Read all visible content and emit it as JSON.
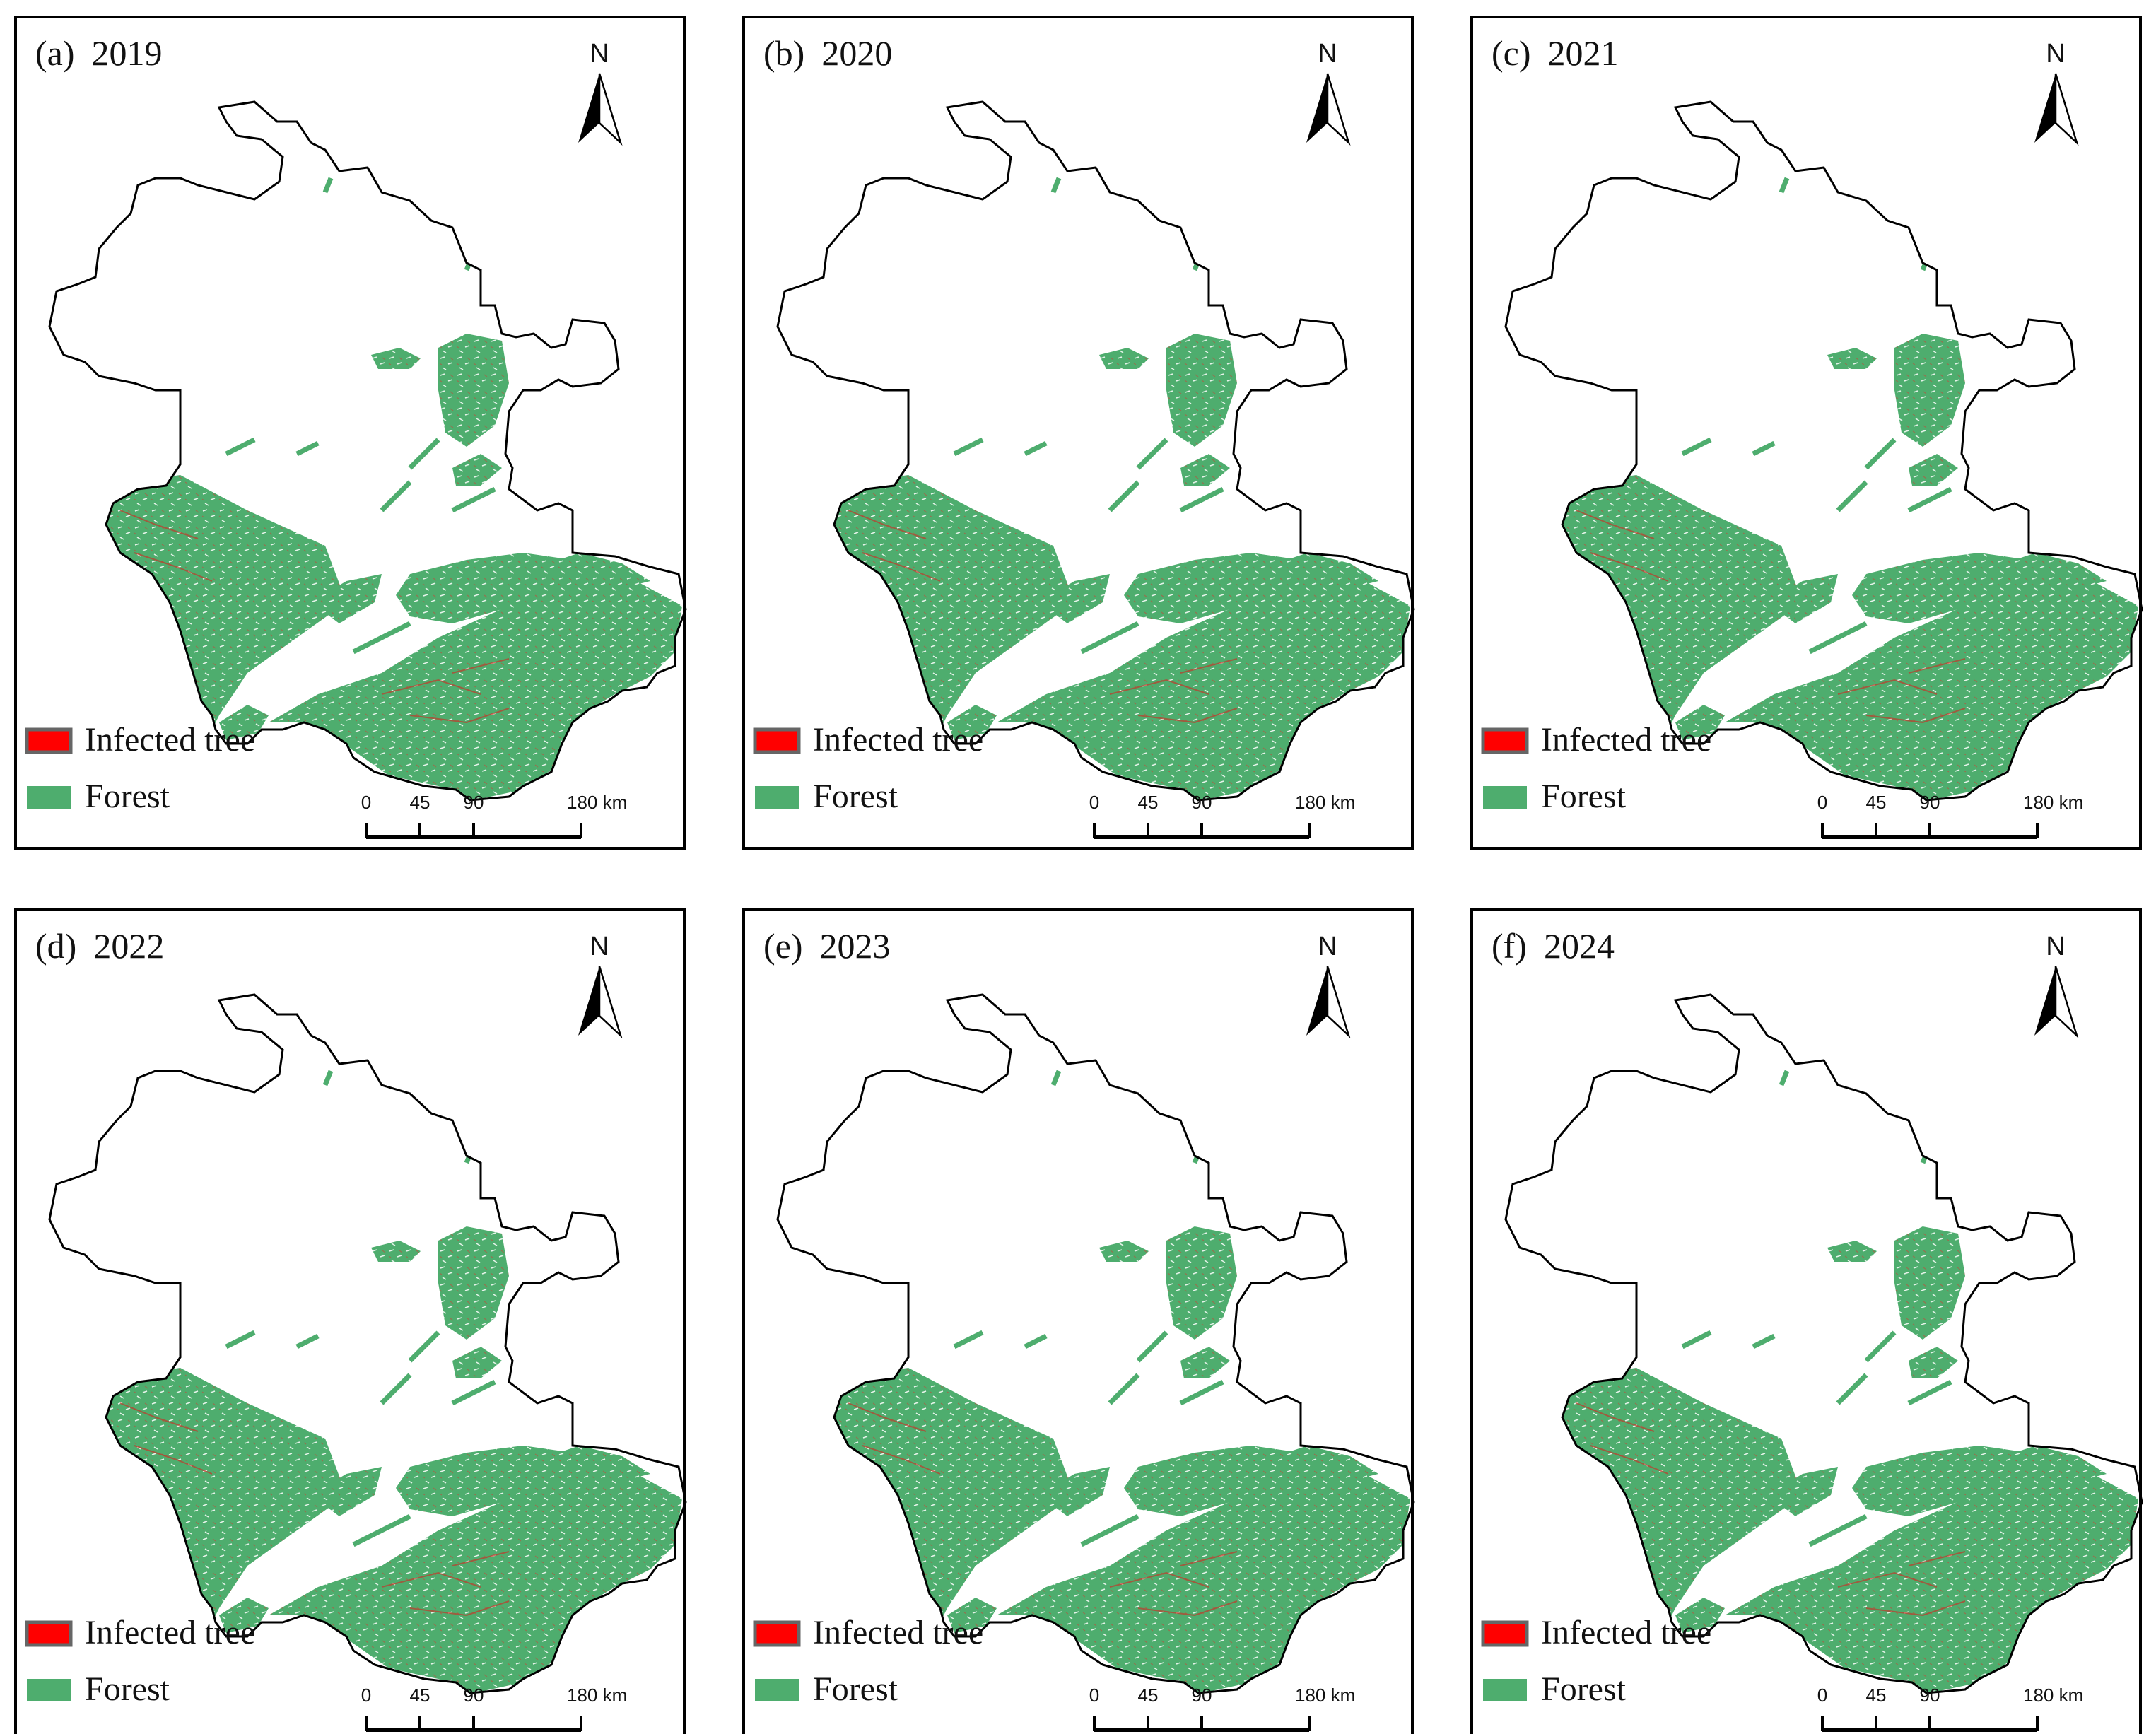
{
  "figure": {
    "panels": [
      {
        "label": "(a)",
        "year": "2019"
      },
      {
        "label": "(b)",
        "year": "2020"
      },
      {
        "label": "(c)",
        "year": "2021"
      },
      {
        "label": "(d)",
        "year": "2022"
      },
      {
        "label": "(e)",
        "year": "2023"
      },
      {
        "label": "(f)",
        "year": "2024"
      }
    ],
    "legend": [
      {
        "label": "Infected tree",
        "color": "#ff0000",
        "border": "#666666"
      },
      {
        "label": "Forest",
        "color": "#4ead6e"
      }
    ],
    "north_arrow": "N",
    "north_arrow_icon": "north-arrow-icon",
    "scale_bar": {
      "ticks": [
        "0",
        "45",
        "90",
        "180 km"
      ]
    },
    "colors": {
      "forest": "#4ead6e",
      "infected": "#c0392b",
      "boundary": "#000000",
      "frame": "#000000"
    }
  }
}
